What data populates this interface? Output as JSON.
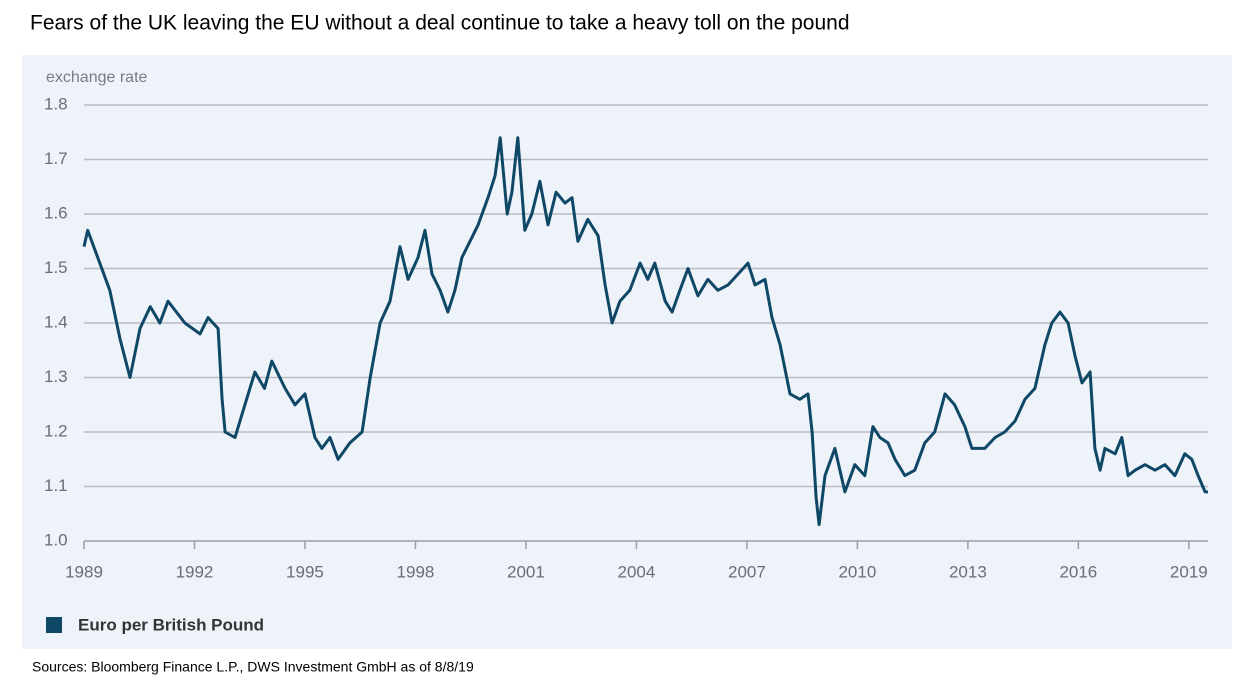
{
  "chart_data": {
    "type": "line",
    "title": "Fears of the UK leaving the EU without a deal continue to take a heavy toll on the pound",
    "y_label": "exchange rate",
    "source": "Sources: Bloomberg Finance L.P., DWS Investment GmbH as of 8/8/19",
    "x": [
      1989,
      1989.1,
      1989.43,
      1989.7,
      1989.98,
      1990.25,
      1990.52,
      1990.8,
      1991.06,
      1991.28,
      1991.74,
      1992.15,
      1992.37,
      1992.64,
      1992.75,
      1992.83,
      1993.1,
      1993.37,
      1993.64,
      1993.9,
      1994.1,
      1994.46,
      1994.73,
      1995.0,
      1995.27,
      1995.46,
      1995.68,
      1995.9,
      1996.22,
      1996.55,
      1996.77,
      1997.04,
      1997.31,
      1997.58,
      1997.8,
      1998.07,
      1998.26,
      1998.45,
      1998.67,
      1998.88,
      1999.07,
      1999.26,
      1999.48,
      1999.7,
      1999.97,
      2000.16,
      2000.3,
      2000.49,
      2000.62,
      2000.78,
      2000.97,
      2001.16,
      2001.38,
      2001.6,
      2001.82,
      2002.06,
      2002.25,
      2002.41,
      2002.68,
      2002.96,
      2003.15,
      2003.34,
      2003.55,
      2003.82,
      2004.1,
      2004.31,
      2004.5,
      2004.78,
      2004.97,
      2005.18,
      2005.4,
      2005.67,
      2005.94,
      2006.21,
      2006.49,
      2006.76,
      2007.03,
      2007.22,
      2007.49,
      2007.68,
      2007.9,
      2008.17,
      2008.44,
      2008.66,
      2008.77,
      2008.88,
      2008.96,
      2009.12,
      2009.39,
      2009.66,
      2009.93,
      2010.2,
      2010.42,
      2010.61,
      2010.83,
      2011.02,
      2011.29,
      2011.56,
      2011.83,
      2012.1,
      2012.38,
      2012.64,
      2012.92,
      2013.11,
      2013.46,
      2013.74,
      2014.0,
      2014.28,
      2014.55,
      2014.82,
      2015.09,
      2015.28,
      2015.5,
      2015.72,
      2015.91,
      2016.1,
      2016.32,
      2016.45,
      2016.59,
      2016.72,
      2017.0,
      2017.18,
      2017.35,
      2017.54,
      2017.81,
      2018.08,
      2018.35,
      2018.62,
      2018.89,
      2019.08,
      2019.25,
      2019.44,
      2019.52
    ],
    "series": [
      {
        "name": "Euro per British Pound",
        "color": "#0f4766",
        "values": [
          1.54,
          1.57,
          1.51,
          1.46,
          1.37,
          1.3,
          1.39,
          1.43,
          1.4,
          1.44,
          1.4,
          1.38,
          1.41,
          1.39,
          1.26,
          1.2,
          1.19,
          1.25,
          1.31,
          1.28,
          1.33,
          1.28,
          1.25,
          1.27,
          1.19,
          1.17,
          1.19,
          1.15,
          1.18,
          1.2,
          1.3,
          1.4,
          1.44,
          1.54,
          1.48,
          1.52,
          1.57,
          1.49,
          1.46,
          1.42,
          1.46,
          1.52,
          1.55,
          1.58,
          1.63,
          1.67,
          1.74,
          1.6,
          1.64,
          1.74,
          1.57,
          1.6,
          1.66,
          1.58,
          1.64,
          1.62,
          1.63,
          1.55,
          1.59,
          1.56,
          1.47,
          1.4,
          1.44,
          1.46,
          1.51,
          1.48,
          1.51,
          1.44,
          1.42,
          1.46,
          1.5,
          1.45,
          1.48,
          1.46,
          1.47,
          1.49,
          1.51,
          1.47,
          1.48,
          1.41,
          1.36,
          1.27,
          1.26,
          1.27,
          1.2,
          1.08,
          1.03,
          1.12,
          1.17,
          1.09,
          1.14,
          1.12,
          1.21,
          1.19,
          1.18,
          1.15,
          1.12,
          1.13,
          1.18,
          1.2,
          1.27,
          1.25,
          1.21,
          1.17,
          1.17,
          1.19,
          1.2,
          1.22,
          1.26,
          1.28,
          1.36,
          1.4,
          1.42,
          1.4,
          1.34,
          1.29,
          1.31,
          1.17,
          1.13,
          1.17,
          1.16,
          1.19,
          1.12,
          1.13,
          1.14,
          1.13,
          1.14,
          1.12,
          1.16,
          1.15,
          1.12,
          1.09,
          1.09
        ]
      }
    ],
    "xlim": [
      1989,
      2019.52
    ],
    "xticks": [
      1989,
      1992,
      1995,
      1998,
      2001,
      2004,
      2007,
      2010,
      2013,
      2016,
      2019
    ],
    "ylim": [
      1,
      1.8
    ],
    "yticks": [
      {
        "value": 1,
        "label": "1.0"
      },
      1.1,
      1.2,
      1.3,
      1.4,
      1.5,
      1.6,
      1.7,
      1.8
    ],
    "grid": true
  }
}
